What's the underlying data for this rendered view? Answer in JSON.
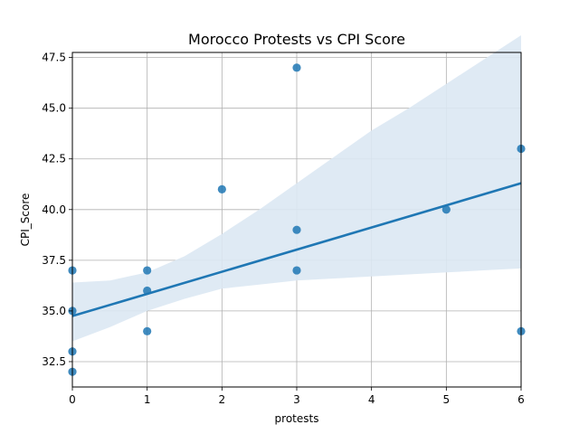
{
  "chart_data": {
    "type": "scatter",
    "title": "Morocco Protests vs CPI Score",
    "xlabel": "protests",
    "ylabel": "CPI_Score",
    "xlim": [
      0,
      6
    ],
    "ylim": [
      31.25,
      47.75
    ],
    "xticks": [
      0,
      1,
      2,
      3,
      4,
      5,
      6
    ],
    "xtick_labels": [
      "0",
      "1",
      "2",
      "3",
      "4",
      "5",
      "6"
    ],
    "yticks": [
      32.5,
      35.0,
      37.5,
      40.0,
      42.5,
      45.0,
      47.5
    ],
    "ytick_labels": [
      "32.5",
      "35.0",
      "37.5",
      "40.0",
      "42.5",
      "45.0",
      "47.5"
    ],
    "grid": true,
    "colors": {
      "points": "#1f77b4",
      "line": "#1f77b4",
      "band": "#dce8f3"
    },
    "points": [
      {
        "x": 0,
        "y": 37
      },
      {
        "x": 0,
        "y": 35
      },
      {
        "x": 0,
        "y": 33
      },
      {
        "x": 0,
        "y": 32
      },
      {
        "x": 1,
        "y": 37
      },
      {
        "x": 1,
        "y": 36
      },
      {
        "x": 1,
        "y": 34
      },
      {
        "x": 2,
        "y": 41
      },
      {
        "x": 3,
        "y": 47
      },
      {
        "x": 3,
        "y": 39
      },
      {
        "x": 3,
        "y": 37
      },
      {
        "x": 5,
        "y": 40
      },
      {
        "x": 6,
        "y": 43
      },
      {
        "x": 6,
        "y": 34
      }
    ],
    "regression": {
      "x": [
        0,
        6
      ],
      "y": [
        34.75,
        41.3
      ]
    },
    "confidence_band": {
      "x": [
        0,
        0.5,
        1,
        1.5,
        2,
        2.5,
        3,
        3.5,
        4,
        4.5,
        5,
        5.5,
        6
      ],
      "upper": [
        36.4,
        36.5,
        36.9,
        37.7,
        38.8,
        40.0,
        41.3,
        42.6,
        43.9,
        45.0,
        46.2,
        47.4,
        48.6
      ],
      "lower": [
        33.5,
        34.2,
        35.0,
        35.6,
        36.1,
        36.3,
        36.5,
        36.6,
        36.7,
        36.8,
        36.9,
        37.0,
        37.1
      ]
    }
  }
}
